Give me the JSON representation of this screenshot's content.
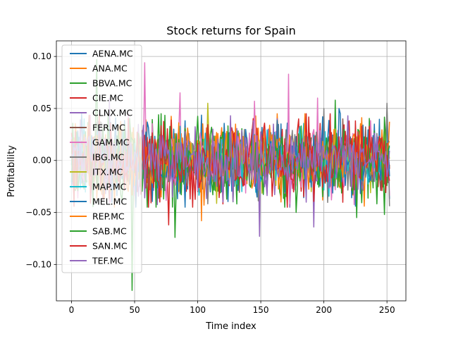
{
  "chart_data": {
    "type": "line",
    "title": "Stock returns for Spain",
    "xlabel": "Time index",
    "ylabel": "Profitability",
    "xlim": [
      -12,
      265
    ],
    "ylim": [
      -0.135,
      0.115
    ],
    "xticks": [
      0,
      50,
      100,
      150,
      200,
      250
    ],
    "xtick_labels": [
      "0",
      "50",
      "100",
      "150",
      "200",
      "250"
    ],
    "yticks": [
      -0.1,
      -0.05,
      0.0,
      0.05,
      0.1
    ],
    "ytick_labels": [
      "−0.10",
      "−0.05",
      "0.00",
      "0.05",
      "0.10"
    ],
    "grid": true,
    "legend_position": "upper-left",
    "n_points": 253,
    "series": [
      {
        "name": "AENA.MC",
        "color": "#1f77b4",
        "seed": 11,
        "amp": 0.016,
        "spikes": [
          [
            171,
            0.036
          ],
          [
            225,
            -0.044
          ],
          [
            231,
            0.034
          ]
        ]
      },
      {
        "name": "ANA.MC",
        "color": "#ff7f0e",
        "seed": 23,
        "amp": 0.017,
        "spikes": [
          [
            103,
            -0.058
          ],
          [
            232,
            -0.044
          ],
          [
            248,
            0.03
          ]
        ]
      },
      {
        "name": "BBVA.MC",
        "color": "#2ca02c",
        "seed": 37,
        "amp": 0.019,
        "spikes": [
          [
            48,
            -0.125
          ],
          [
            20,
            0.097
          ],
          [
            209,
            0.058
          ],
          [
            248,
            -0.052
          ],
          [
            82,
            -0.074
          ]
        ]
      },
      {
        "name": "CIE.MC",
        "color": "#d62728",
        "seed": 41,
        "amp": 0.016,
        "spikes": [
          [
            77,
            -0.062
          ],
          [
            52,
            -0.03
          ],
          [
            180,
            0.04
          ]
        ]
      },
      {
        "name": "CLNX.MC",
        "color": "#9467bd",
        "seed": 53,
        "amp": 0.016,
        "spikes": [
          [
            149,
            -0.073
          ],
          [
            192,
            -0.064
          ],
          [
            30,
            0.06
          ]
        ]
      },
      {
        "name": "FER.MC",
        "color": "#8c564b",
        "seed": 61,
        "amp": 0.013,
        "spikes": [
          [
            215,
            0.04
          ],
          [
            100,
            -0.03
          ]
        ]
      },
      {
        "name": "GAM.MC",
        "color": "#e377c2",
        "seed": 71,
        "amp": 0.019,
        "spikes": [
          [
            58,
            0.094
          ],
          [
            86,
            0.065
          ],
          [
            172,
            0.083
          ],
          [
            145,
            0.057
          ],
          [
            195,
            0.06
          ],
          [
            252,
            -0.034
          ]
        ]
      },
      {
        "name": "IBG.MC",
        "color": "#7f7f7f",
        "seed": 83,
        "amp": 0.015,
        "spikes": [
          [
            250,
            0.055
          ],
          [
            252,
            -0.044
          ],
          [
            200,
            0.05
          ]
        ]
      },
      {
        "name": "ITX.MC",
        "color": "#bcbd22",
        "seed": 97,
        "amp": 0.014,
        "spikes": [
          [
            108,
            0.055
          ],
          [
            190,
            -0.03
          ]
        ]
      },
      {
        "name": "MAP.MC",
        "color": "#17becf",
        "seed": 101,
        "amp": 0.014,
        "spikes": [
          [
            10,
            0.04
          ],
          [
            135,
            -0.03
          ]
        ]
      },
      {
        "name": "MEL.MC",
        "color": "#1f77b4",
        "seed": 113,
        "amp": 0.017,
        "spikes": [
          [
            90,
            -0.045
          ],
          [
            212,
            0.05
          ],
          [
            240,
            0.035
          ]
        ]
      },
      {
        "name": "REP.MC",
        "color": "#ff7f0e",
        "seed": 127,
        "amp": 0.016,
        "spikes": [
          [
            166,
            -0.04
          ],
          [
            130,
            0.035
          ]
        ]
      },
      {
        "name": "SAB.MC",
        "color": "#2ca02c",
        "seed": 131,
        "amp": 0.018,
        "spikes": [
          [
            60,
            -0.045
          ],
          [
            226,
            -0.055
          ],
          [
            178,
            -0.05
          ]
        ]
      },
      {
        "name": "SAN.MC",
        "color": "#d62728",
        "seed": 139,
        "amp": 0.017,
        "spikes": [
          [
            70,
            -0.04
          ],
          [
            205,
            0.045
          ]
        ]
      },
      {
        "name": "TEF.MC",
        "color": "#9467bd",
        "seed": 149,
        "amp": 0.015,
        "spikes": [
          [
            120,
            -0.04
          ],
          [
            160,
            0.035
          ]
        ]
      }
    ]
  }
}
